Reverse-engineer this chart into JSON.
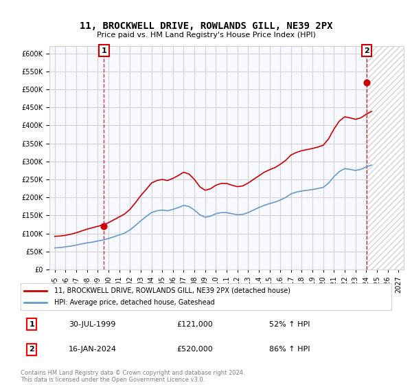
{
  "title": "11, BROCKWELL DRIVE, ROWLANDS GILL, NE39 2PX",
  "subtitle": "Price paid vs. HM Land Registry's House Price Index (HPI)",
  "legend_line1": "11, BROCKWELL DRIVE, ROWLANDS GILL, NE39 2PX (detached house)",
  "legend_line2": "HPI: Average price, detached house, Gateshead",
  "annotation1_label": "1",
  "annotation1_date": "30-JUL-1999",
  "annotation1_price": "£121,000",
  "annotation1_hpi": "52% ↑ HPI",
  "annotation2_label": "2",
  "annotation2_date": "16-JAN-2024",
  "annotation2_price": "£520,000",
  "annotation2_hpi": "86% ↑ HPI",
  "copyright": "Contains HM Land Registry data © Crown copyright and database right 2024.\nThis data is licensed under the Open Government Licence v3.0.",
  "background_color": "#f0f4ff",
  "plot_bg_color": "#f8f8ff",
  "red_color": "#cc0000",
  "blue_color": "#6699cc",
  "hpi_line": {
    "years": [
      1995,
      1995.5,
      1996,
      1996.5,
      1997,
      1997.5,
      1998,
      1998.5,
      1999,
      1999.5,
      2000,
      2000.5,
      2001,
      2001.5,
      2002,
      2002.5,
      2003,
      2003.5,
      2004,
      2004.5,
      2005,
      2005.5,
      2006,
      2006.5,
      2007,
      2007.5,
      2008,
      2008.5,
      2009,
      2009.5,
      2010,
      2010.5,
      2011,
      2011.5,
      2012,
      2012.5,
      2013,
      2013.5,
      2014,
      2014.5,
      2015,
      2015.5,
      2016,
      2016.5,
      2017,
      2017.5,
      2018,
      2018.5,
      2019,
      2019.5,
      2020,
      2020.5,
      2021,
      2021.5,
      2022,
      2022.5,
      2023,
      2023.5,
      2024,
      2024.5
    ],
    "values": [
      60000,
      61000,
      63000,
      65000,
      68000,
      71000,
      74000,
      76000,
      79000,
      82000,
      86000,
      91000,
      96000,
      101000,
      110000,
      122000,
      135000,
      147000,
      158000,
      163000,
      165000,
      163000,
      167000,
      172000,
      178000,
      175000,
      165000,
      152000,
      145000,
      148000,
      155000,
      158000,
      158000,
      155000,
      152000,
      153000,
      158000,
      165000,
      172000,
      178000,
      183000,
      187000,
      193000,
      200000,
      210000,
      215000,
      218000,
      220000,
      222000,
      225000,
      228000,
      240000,
      258000,
      272000,
      280000,
      278000,
      275000,
      278000,
      285000,
      290000
    ]
  },
  "red_line": {
    "years": [
      1995,
      1995.5,
      1996,
      1996.5,
      1997,
      1997.5,
      1998,
      1998.5,
      1999,
      1999.5,
      2000,
      2000.5,
      2001,
      2001.5,
      2002,
      2002.5,
      2003,
      2003.5,
      2004,
      2004.5,
      2005,
      2005.5,
      2006,
      2006.5,
      2007,
      2007.5,
      2008,
      2008.5,
      2009,
      2009.5,
      2010,
      2010.5,
      2011,
      2011.5,
      2012,
      2012.5,
      2013,
      2013.5,
      2014,
      2014.5,
      2015,
      2015.5,
      2016,
      2016.5,
      2017,
      2017.5,
      2018,
      2018.5,
      2019,
      2019.5,
      2020,
      2020.5,
      2021,
      2021.5,
      2022,
      2022.5,
      2023,
      2023.5,
      2024,
      2024.5
    ],
    "values": [
      92000,
      93000,
      95000,
      98000,
      102000,
      107000,
      112000,
      116000,
      120000,
      124000,
      130000,
      138000,
      146000,
      154000,
      167000,
      185000,
      205000,
      222000,
      240000,
      247000,
      250000,
      247000,
      253000,
      261000,
      270000,
      265000,
      250000,
      230000,
      220000,
      224000,
      234000,
      239000,
      239000,
      234000,
      230000,
      232000,
      240000,
      250000,
      260000,
      270000,
      277000,
      283000,
      292000,
      303000,
      318000,
      325000,
      330000,
      333000,
      336000,
      340000,
      345000,
      363000,
      390000,
      412000,
      424000,
      421000,
      417000,
      421000,
      431000,
      439000
    ]
  },
  "sale1_x": 1999.58,
  "sale1_y": 121000,
  "sale2_x": 2024.05,
  "sale2_y": 520000,
  "ylim": [
    0,
    620000
  ],
  "xlim": [
    1994.5,
    2027.5
  ],
  "yticks": [
    0,
    50000,
    100000,
    150000,
    200000,
    250000,
    300000,
    350000,
    400000,
    450000,
    500000,
    550000,
    600000
  ],
  "xticks": [
    1995,
    1996,
    1997,
    1998,
    1999,
    2000,
    2001,
    2002,
    2003,
    2004,
    2005,
    2006,
    2007,
    2008,
    2009,
    2010,
    2011,
    2012,
    2013,
    2014,
    2015,
    2016,
    2017,
    2018,
    2019,
    2020,
    2021,
    2022,
    2023,
    2024,
    2025,
    2026,
    2027
  ]
}
